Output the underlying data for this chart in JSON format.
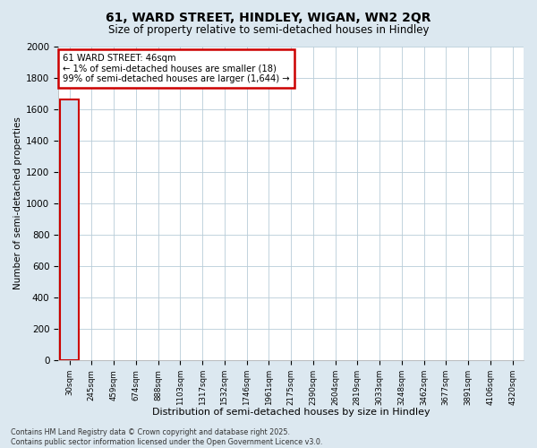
{
  "title_line1": "61, WARD STREET, HINDLEY, WIGAN, WN2 2QR",
  "title_line2": "Size of property relative to semi-detached houses in Hindley",
  "xlabel": "Distribution of semi-detached houses by size in Hindley",
  "ylabel": "Number of semi-detached properties",
  "bar_color": "#cce0f0",
  "highlight_bar_edge": "#cc0000",
  "annotation_text": "61 WARD STREET: 46sqm\n← 1% of semi-detached houses are smaller (18)\n99% of semi-detached houses are larger (1,644) →",
  "annotation_box_color": "#ffffff",
  "annotation_box_edge": "#cc0000",
  "footer_text": "Contains HM Land Registry data © Crown copyright and database right 2025.\nContains public sector information licensed under the Open Government Licence v3.0.",
  "categories": [
    "30sqm",
    "245sqm",
    "459sqm",
    "674sqm",
    "888sqm",
    "1103sqm",
    "1317sqm",
    "1532sqm",
    "1746sqm",
    "1961sqm",
    "2175sqm",
    "2390sqm",
    "2604sqm",
    "2819sqm",
    "3033sqm",
    "3248sqm",
    "3462sqm",
    "3677sqm",
    "3891sqm",
    "4106sqm",
    "4320sqm"
  ],
  "values": [
    1662,
    0,
    0,
    0,
    0,
    0,
    0,
    0,
    0,
    0,
    0,
    0,
    0,
    0,
    0,
    0,
    0,
    0,
    0,
    0,
    0
  ],
  "highlight_index": 0,
  "ylim": [
    0,
    2000
  ],
  "yticks": [
    0,
    200,
    400,
    600,
    800,
    1000,
    1200,
    1400,
    1600,
    1800,
    2000
  ],
  "background_color": "#dce8f0",
  "plot_bg_color": "#ffffff",
  "grid_color": "#b8ccd8"
}
